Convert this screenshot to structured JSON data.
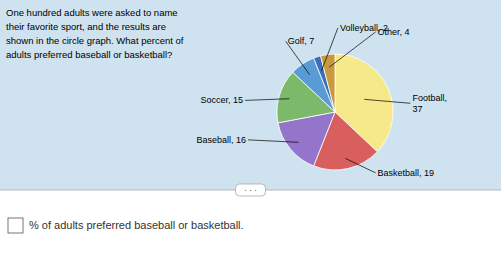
{
  "chart_data": {
    "type": "pie",
    "title": "One hundred adults were asked to name\ntheir favorite sport, and the results are\nshown in the circle graph. What percent of\nadults preferred baseball or basketball?",
    "values": [
      37,
      19,
      16,
      15,
      7,
      2,
      4
    ],
    "value_labels": [
      "Football,\n37",
      "Basketball, 19",
      "Baseball, 16",
      "Soccer, 15",
      "Golf, 7",
      "Volleyball, 2",
      "Other, 4"
    ],
    "colors": [
      "#f5e98a",
      "#d95f5f",
      "#9575c9",
      "#7db96b",
      "#5b9bd5",
      "#3a6fba",
      "#c89a3c"
    ],
    "data_labels": true,
    "annotations": [
      "% of adults preferred baseball or basketball.",
      ". . ."
    ]
  }
}
